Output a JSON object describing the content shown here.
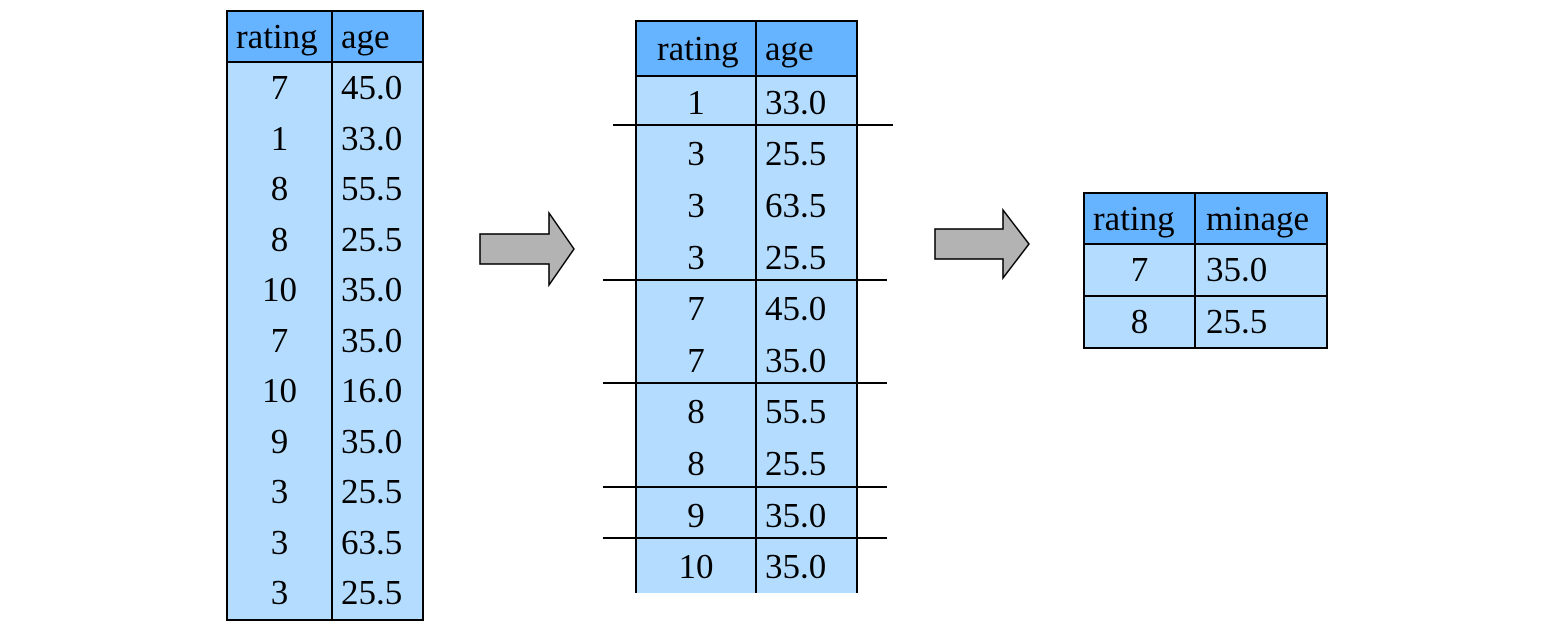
{
  "source_table": {
    "headers": [
      "rating",
      "age"
    ],
    "rows": [
      [
        "7",
        "45.0"
      ],
      [
        "1",
        "33.0"
      ],
      [
        "8",
        "55.5"
      ],
      [
        "8",
        "25.5"
      ],
      [
        "10",
        "35.0"
      ],
      [
        "7",
        "35.0"
      ],
      [
        "10",
        "16.0"
      ],
      [
        "9",
        "35.0"
      ],
      [
        "3",
        "25.5"
      ],
      [
        "3",
        "63.5"
      ],
      [
        "3",
        "25.5"
      ]
    ]
  },
  "grouped_table": {
    "headers": [
      "rating",
      "age"
    ],
    "rows": [
      [
        "1",
        "33.0"
      ],
      [
        "3",
        "25.5"
      ],
      [
        "3",
        "63.5"
      ],
      [
        "3",
        "25.5"
      ],
      [
        "7",
        "45.0"
      ],
      [
        "7",
        "35.0"
      ],
      [
        "8",
        "55.5"
      ],
      [
        "8",
        "25.5"
      ],
      [
        "9",
        "35.0"
      ],
      [
        "10",
        "35.0"
      ]
    ]
  },
  "result_table": {
    "headers": [
      "rating",
      "minage"
    ],
    "rows": [
      [
        "7",
        "35.0"
      ],
      [
        "8",
        "25.5"
      ]
    ]
  },
  "colors": {
    "header_fill": "#66b3ff",
    "cell_fill": "#b3dcff",
    "arrow_fill": "#b3b3b3",
    "border": "#000000"
  },
  "icons": {
    "arrow_1": "right-arrow-icon",
    "arrow_2": "right-arrow-icon"
  }
}
